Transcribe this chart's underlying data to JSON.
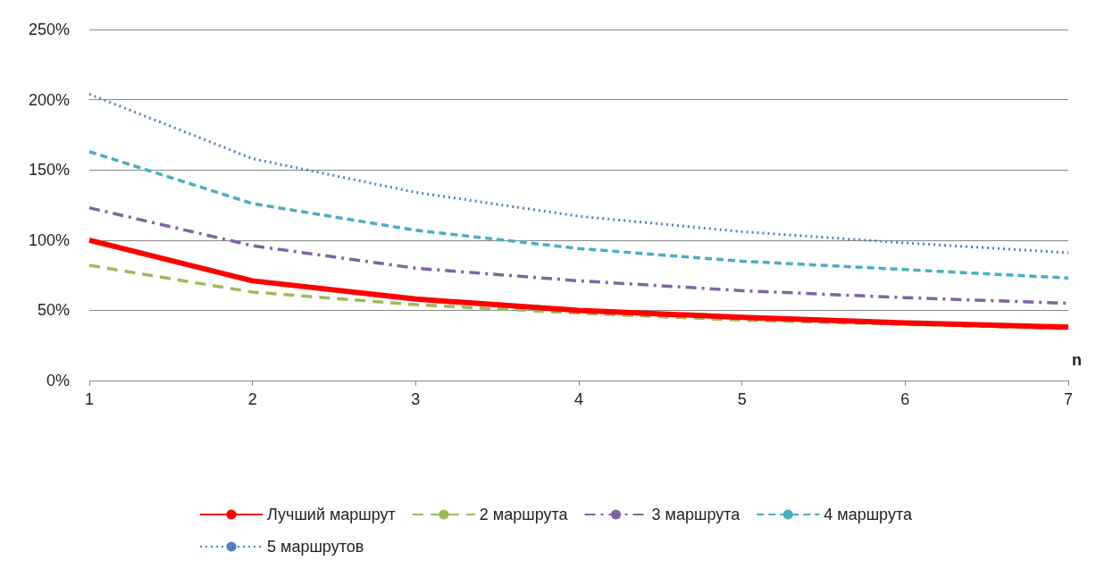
{
  "chart_data": {
    "type": "line",
    "xlabel": "n",
    "x": [
      1,
      2,
      3,
      4,
      5,
      6,
      7
    ],
    "xlim": [
      1,
      7
    ],
    "xticks": [
      1,
      2,
      3,
      4,
      5,
      6,
      7
    ],
    "ylim": [
      0,
      250
    ],
    "yticks": [
      {
        "value": 0,
        "label": "0%"
      },
      {
        "value": 50,
        "label": "50%"
      },
      {
        "value": 100,
        "label": "100%"
      },
      {
        "value": 150,
        "label": "150%"
      },
      {
        "value": 200,
        "label": "200%"
      },
      {
        "value": 250,
        "label": "250%"
      }
    ],
    "grid": "y",
    "legend": "bottom",
    "marker": "none",
    "series": [
      {
        "name": "Лучший маршрут",
        "color": "#ff0000",
        "line_style": "solid",
        "values": [
          100,
          71,
          58,
          50,
          45,
          41,
          38
        ]
      },
      {
        "name": "2 маршрута",
        "color": "#9bbb59",
        "line_style": "dashed",
        "values": [
          82,
          63,
          54,
          48,
          43,
          40,
          37
        ]
      },
      {
        "name": "3 маршрута",
        "color": "#8064a2",
        "line_style": "dashdot",
        "values": [
          123,
          96,
          80,
          71,
          64,
          59,
          55
        ]
      },
      {
        "name": "4 маршрута",
        "color": "#4bacc6",
        "line_style": "dashed",
        "values": [
          163,
          126,
          107,
          94,
          85,
          79,
          73
        ]
      },
      {
        "name": "5 маршрутов",
        "color": "#4f81bd",
        "line_style": "dotted",
        "values": [
          204,
          158,
          134,
          117,
          106,
          98,
          91
        ]
      }
    ]
  }
}
